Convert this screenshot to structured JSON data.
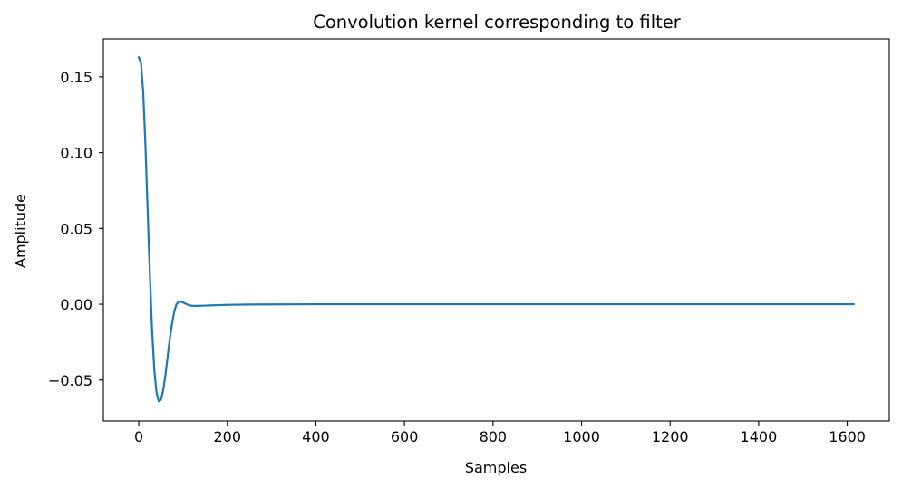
{
  "chart_data": {
    "type": "line",
    "title": "Convolution kernel corresponding to filter",
    "xlabel": "Samples",
    "ylabel": "Amplitude",
    "xlim": [
      -80,
      1695
    ],
    "ylim": [
      -0.077,
      0.175
    ],
    "x_ticks": [
      0,
      200,
      400,
      600,
      800,
      1000,
      1200,
      1400,
      1600
    ],
    "x_tick_labels": [
      "0",
      "200",
      "400",
      "600",
      "800",
      "1000",
      "1200",
      "1400",
      "1600"
    ],
    "y_ticks": [
      -0.05,
      0.0,
      0.05,
      0.1,
      0.15
    ],
    "y_tick_labels": [
      "−0.05",
      "0.00",
      "0.05",
      "0.10",
      "0.15"
    ],
    "grid": false,
    "legend": "none",
    "series": [
      {
        "color": "#1f77b4",
        "x": [
          0,
          5,
          10,
          15,
          20,
          25,
          30,
          35,
          40,
          45,
          50,
          55,
          60,
          65,
          70,
          75,
          80,
          85,
          90,
          95,
          100,
          105,
          110,
          115,
          120,
          130,
          140,
          150,
          160,
          180,
          200,
          250,
          300,
          400,
          500,
          700,
          1000,
          1300,
          1615
        ],
        "y": [
          0.163,
          0.159,
          0.14,
          0.105,
          0.062,
          0.02,
          -0.017,
          -0.043,
          -0.058,
          -0.064,
          -0.063,
          -0.057,
          -0.047,
          -0.035,
          -0.023,
          -0.013,
          -0.005,
          0.0,
          0.0015,
          0.0017,
          0.0012,
          0.0004,
          -0.0002,
          -0.0008,
          -0.001,
          -0.0011,
          -0.001,
          -0.0009,
          -0.0008,
          -0.0006,
          -0.0004,
          -0.0002,
          -0.0001,
          0.0,
          0.0,
          0.0,
          0.0,
          0.0,
          0.0
        ]
      }
    ]
  }
}
